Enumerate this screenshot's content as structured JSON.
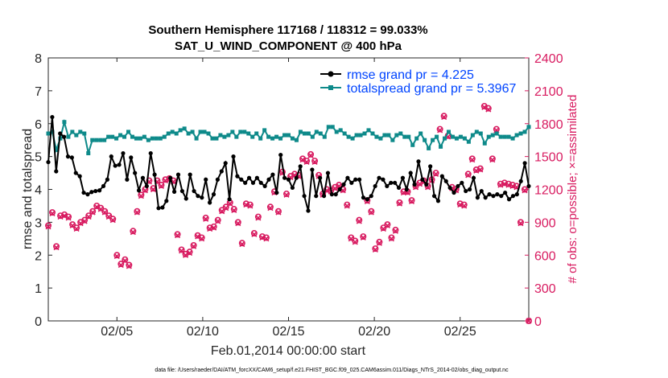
{
  "chart_data": {
    "type": "line",
    "title_line1": "Southern Hemisphere 117168 / 118312 = 99.033%",
    "title_line2": "SAT_U_WIND_COMPONENT @ 400 hPa",
    "xlabel": "Feb.01,2014 00:00:00 start",
    "ylabel": "rmse and totalspread",
    "y2label": "# of obs: o=possible; ×=assimilated",
    "footer": "data file: /Users/raeder/DAI/ATM_forcXX/CAM6_setup/f.e21.FHIST_BGC.f09_025.CAM6assim.011/Diags_NTrS_2014-02/obs_diag_output.nc",
    "xlim": [
      1,
      29
    ],
    "ylim": [
      0,
      8
    ],
    "y2lim": [
      0,
      2400
    ],
    "xticks": [
      5,
      10,
      15,
      20,
      25
    ],
    "xticklabels": [
      "02/05",
      "02/10",
      "02/15",
      "02/20",
      "02/25"
    ],
    "yticks": [
      0,
      1,
      2,
      3,
      4,
      5,
      6,
      7,
      8
    ],
    "y2ticks": [
      0,
      300,
      600,
      900,
      1200,
      1500,
      1800,
      2100,
      2400
    ],
    "legend": [
      "rmse grand pr = 4.225",
      "totalspread grand pr = 5.3967"
    ],
    "colors": {
      "rmse": "#000000",
      "spread": "#0e8a8a",
      "obs": "#d81b60",
      "legend_text": "#0044ff",
      "axis": "#262626"
    },
    "series": [
      {
        "name": "rmse",
        "values": [
          4.83,
          6.2,
          4.55,
          5.7,
          5.6,
          5.0,
          4.97,
          4.5,
          4.4,
          3.9,
          3.85,
          3.92,
          3.95,
          3.97,
          4.1,
          4.3,
          5.0,
          4.72,
          4.75,
          5.1,
          4.3,
          4.97,
          4.5,
          3.97,
          4.35,
          4.1,
          5.1,
          4.45,
          3.43,
          3.45,
          3.65,
          4.35,
          3.93,
          4.45,
          3.95,
          3.72,
          4.45,
          3.95,
          3.8,
          3.75,
          4.3,
          3.6,
          3.85,
          4.3,
          4.55,
          4.8,
          3.7,
          5.0,
          4.4,
          4.3,
          4.2,
          4.35,
          4.2,
          4.35,
          4.2,
          4.1,
          4.3,
          4.45,
          3.9,
          5.05,
          4.35,
          4.3,
          4.05,
          4.35,
          4.7,
          3.8,
          3.35,
          4.6,
          3.8,
          4.35,
          3.8,
          4.5,
          3.85,
          3.85,
          4.0,
          4.15,
          4.35,
          4.2,
          4.3,
          4.3,
          3.75,
          3.7,
          3.8,
          4.1,
          4.35,
          4.3,
          4.1,
          4.2,
          4.2,
          4.05,
          4.35,
          4.0,
          4.5,
          4.15,
          4.85,
          4.3,
          4.15,
          4.7,
          3.8,
          3.65,
          4.4,
          4.25,
          4.05,
          3.9,
          4.1,
          4.2,
          3.95,
          4.0,
          4.35,
          3.75,
          3.95,
          3.75,
          3.85,
          3.8,
          3.85,
          3.8,
          3.9,
          3.7,
          3.8,
          3.85,
          4.25,
          4.8,
          4.1
        ]
      },
      {
        "name": "totalspread",
        "values": [
          5.7,
          5.75,
          5.2,
          5.55,
          6.05,
          5.6,
          5.75,
          5.65,
          5.75,
          5.7,
          5.1,
          5.5,
          5.5,
          5.5,
          5.5,
          5.6,
          5.6,
          5.55,
          5.65,
          5.6,
          5.75,
          5.6,
          5.55,
          5.55,
          5.6,
          5.5,
          5.55,
          5.55,
          5.55,
          5.6,
          5.7,
          5.75,
          5.7,
          5.8,
          5.85,
          5.7,
          5.75,
          5.55,
          5.75,
          5.75,
          5.7,
          5.55,
          5.55,
          5.65,
          5.6,
          5.65,
          5.75,
          5.6,
          5.75,
          5.75,
          5.7,
          5.6,
          5.7,
          5.55,
          5.8,
          5.6,
          5.55,
          5.6,
          5.55,
          5.65,
          5.65,
          5.55,
          5.5,
          5.75,
          5.7,
          5.7,
          5.6,
          5.75,
          5.7,
          5.6,
          5.9,
          5.9,
          5.75,
          5.8,
          5.7,
          5.6,
          5.55,
          5.65,
          5.65,
          5.7,
          5.8,
          5.7,
          5.6,
          5.55,
          5.65,
          5.65,
          5.5,
          5.65,
          5.7,
          5.6,
          5.6,
          5.35,
          5.55,
          5.7,
          5.5,
          5.25,
          5.5,
          5.6,
          5.3,
          5.55,
          5.75,
          5.6,
          5.55,
          5.6,
          5.55,
          5.45,
          5.65,
          5.75,
          5.7,
          5.4,
          5.6,
          5.65,
          5.7,
          5.6,
          5.6,
          5.6,
          5.55,
          5.65,
          5.7,
          5.75,
          5.9
        ]
      },
      {
        "name": "obs_possible",
        "values": [
          870,
          990,
          680,
          960,
          970,
          950,
          880,
          850,
          900,
          920,
          960,
          1000,
          1050,
          1030,
          1000,
          960,
          930,
          600,
          520,
          560,
          510,
          820,
          1000,
          1150,
          1200,
          1280,
          1210,
          1280,
          1240,
          1290,
          1300,
          1280,
          790,
          650,
          610,
          630,
          690,
          780,
          760,
          940,
          850,
          860,
          920,
          1010,
          1040,
          1080,
          1020,
          900,
          710,
          1070,
          1060,
          800,
          950,
          770,
          760,
          1040,
          1180,
          1000,
          1360,
          1160,
          1320,
          1340,
          1330,
          1480,
          1460,
          1520,
          1460,
          1330,
          1160,
          1200,
          1190,
          1220,
          1240,
          1200,
          1060,
          760,
          730,
          920,
          770,
          1100,
          1000,
          660,
          720,
          850,
          880,
          760,
          830,
          1080,
          1180,
          1180,
          1100,
          1230,
          1260,
          1280,
          1230,
          1290,
          1350,
          1750,
          1870,
          1690,
          1220,
          1200,
          1070,
          1060,
          1340,
          1480,
          1380,
          1390,
          1960,
          1940,
          1480,
          1750,
          1250,
          1260,
          1250,
          1240,
          1230,
          900,
          1200,
          0
        ]
      },
      {
        "name": "obs_assimilated",
        "values": [
          860,
          980,
          670,
          950,
          960,
          940,
          870,
          840,
          890,
          910,
          950,
          990,
          1040,
          1020,
          990,
          950,
          920,
          590,
          510,
          550,
          500,
          810,
          990,
          1140,
          1190,
          1270,
          1200,
          1270,
          1230,
          1280,
          1290,
          1270,
          780,
          640,
          600,
          620,
          680,
          770,
          750,
          930,
          840,
          850,
          910,
          1000,
          1030,
          1070,
          1010,
          890,
          700,
          1060,
          1050,
          790,
          940,
          760,
          750,
          1030,
          1170,
          990,
          1350,
          1150,
          1310,
          1330,
          1320,
          1470,
          1450,
          1510,
          1450,
          1320,
          1150,
          1190,
          1180,
          1210,
          1230,
          1190,
          1050,
          750,
          720,
          910,
          760,
          1090,
          990,
          650,
          710,
          840,
          870,
          750,
          820,
          1070,
          1170,
          1170,
          1090,
          1220,
          1250,
          1270,
          1220,
          1280,
          1340,
          1740,
          1860,
          1680,
          1210,
          1190,
          1060,
          1050,
          1330,
          1470,
          1370,
          1380,
          1950,
          1930,
          1470,
          1740,
          1240,
          1250,
          1240,
          1230,
          1220,
          890,
          1190,
          0
        ]
      }
    ]
  }
}
